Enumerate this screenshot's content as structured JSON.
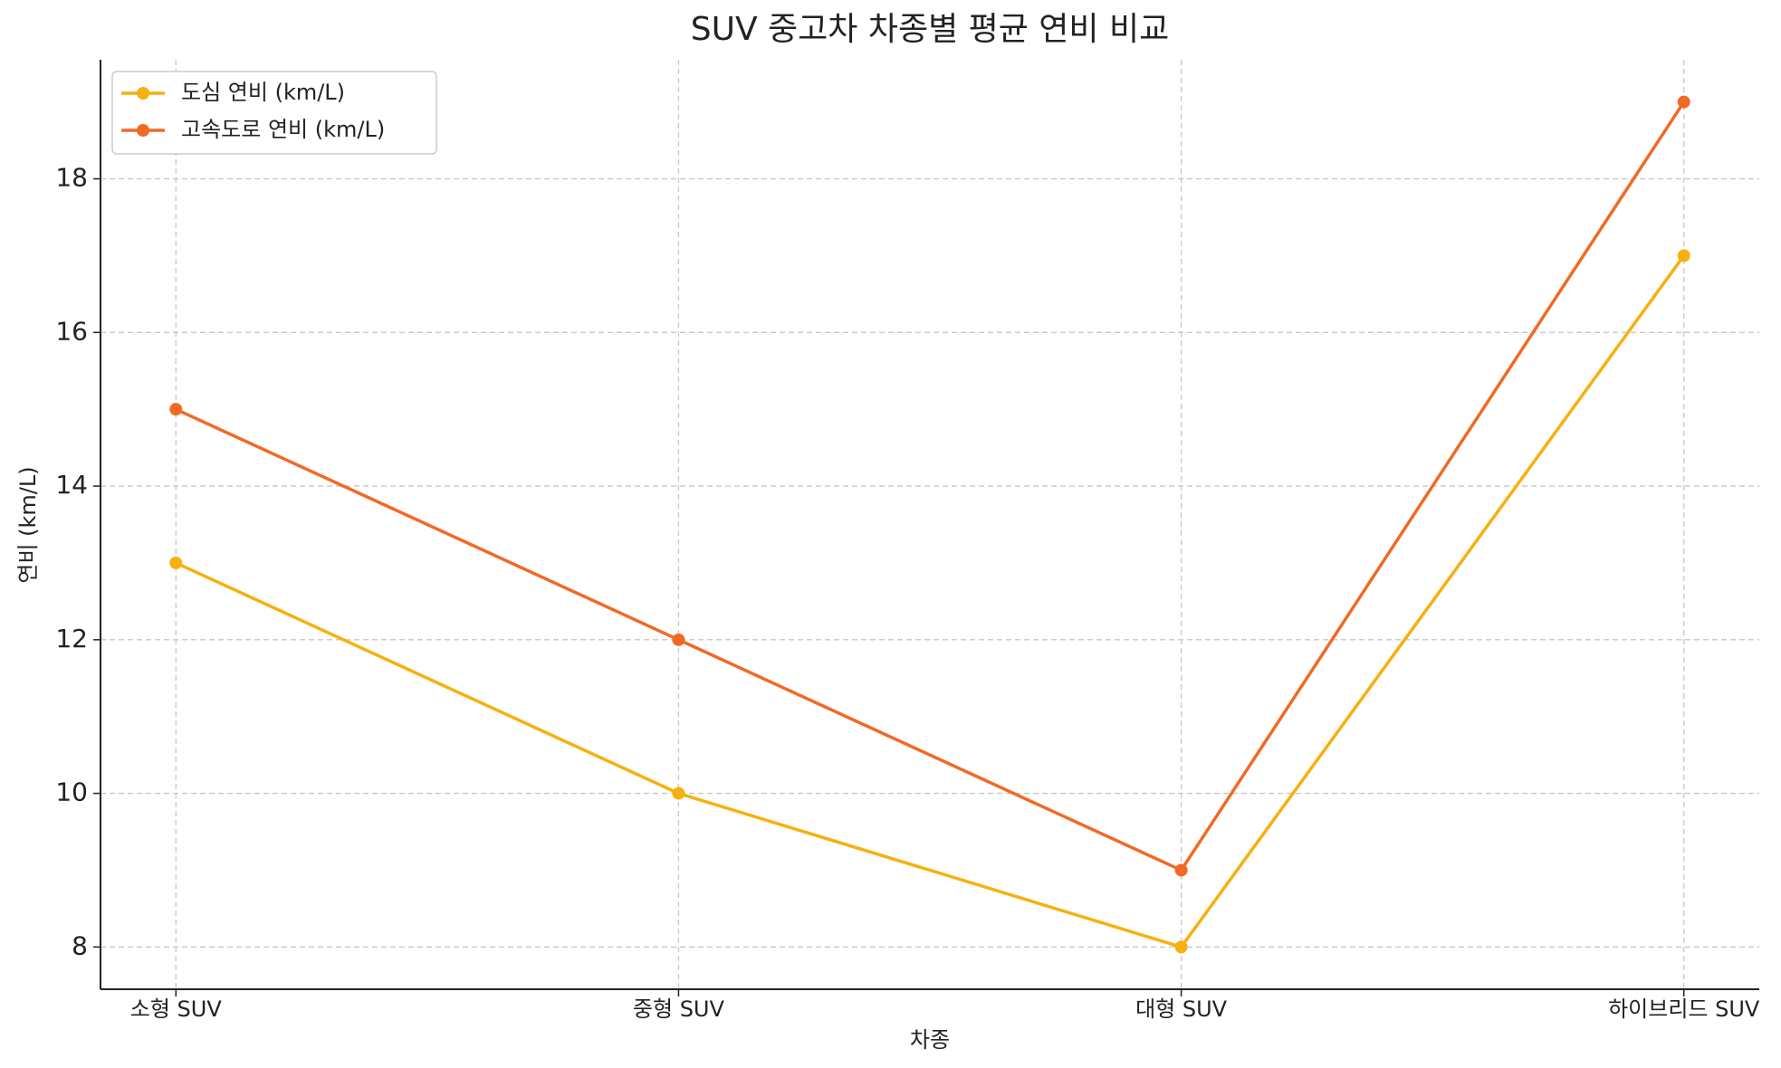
{
  "chart_data": {
    "type": "line",
    "title": "SUV 중고차 차종별 평균 연비 비교",
    "x_label": "차종",
    "y_label": "연비 (km/L)",
    "categories": [
      "소형 SUV",
      "중형 SUV",
      "대형 SUV",
      "하이브리드 SUV"
    ],
    "series": [
      {
        "name": "도심 연비 (km/L)",
        "color": "#f7b00f",
        "values": [
          13,
          10,
          8,
          17
        ]
      },
      {
        "name": "고속도로 연비 (km/L)",
        "color": "#f06a25",
        "values": [
          15,
          12,
          9,
          19
        ]
      }
    ],
    "ylim": [
      7.45,
      19.55
    ],
    "yticks": [
      8,
      10,
      12,
      14,
      16,
      18
    ],
    "grid": true,
    "legend": "upper left"
  }
}
